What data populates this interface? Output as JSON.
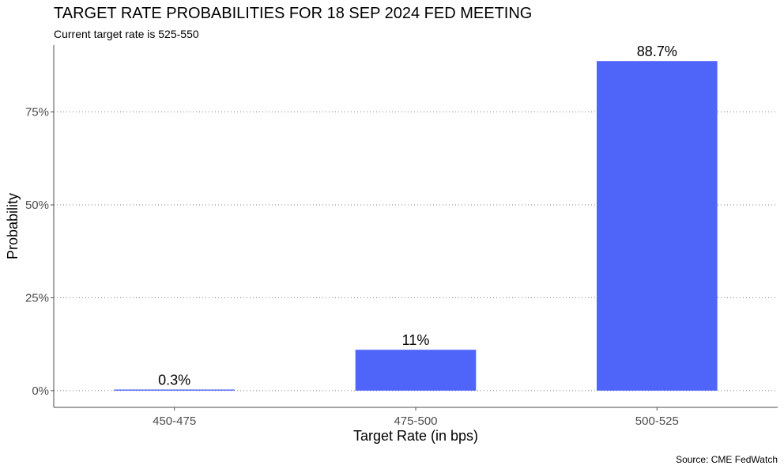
{
  "chart_data": {
    "type": "bar",
    "title": "TARGET RATE PROBABILITIES FOR 18 SEP 2024 FED MEETING",
    "subtitle": "Current target rate is 525-550",
    "caption": "Source: CME FedWatch",
    "xlabel": "Target Rate (in bps)",
    "ylabel": "Probability",
    "categories": [
      "450-475",
      "475-500",
      "500-525"
    ],
    "values": [
      0.3,
      11,
      88.7
    ],
    "data_labels": [
      "0.3%",
      "11%",
      "88.7%"
    ],
    "ylim": [
      -4.5,
      93
    ],
    "yticks": [
      0,
      25,
      50,
      75
    ],
    "ytick_labels": [
      "0%",
      "25%",
      "50%",
      "75%"
    ],
    "grid": "horizontal-dotted",
    "bar_color": "#4f64f9"
  }
}
